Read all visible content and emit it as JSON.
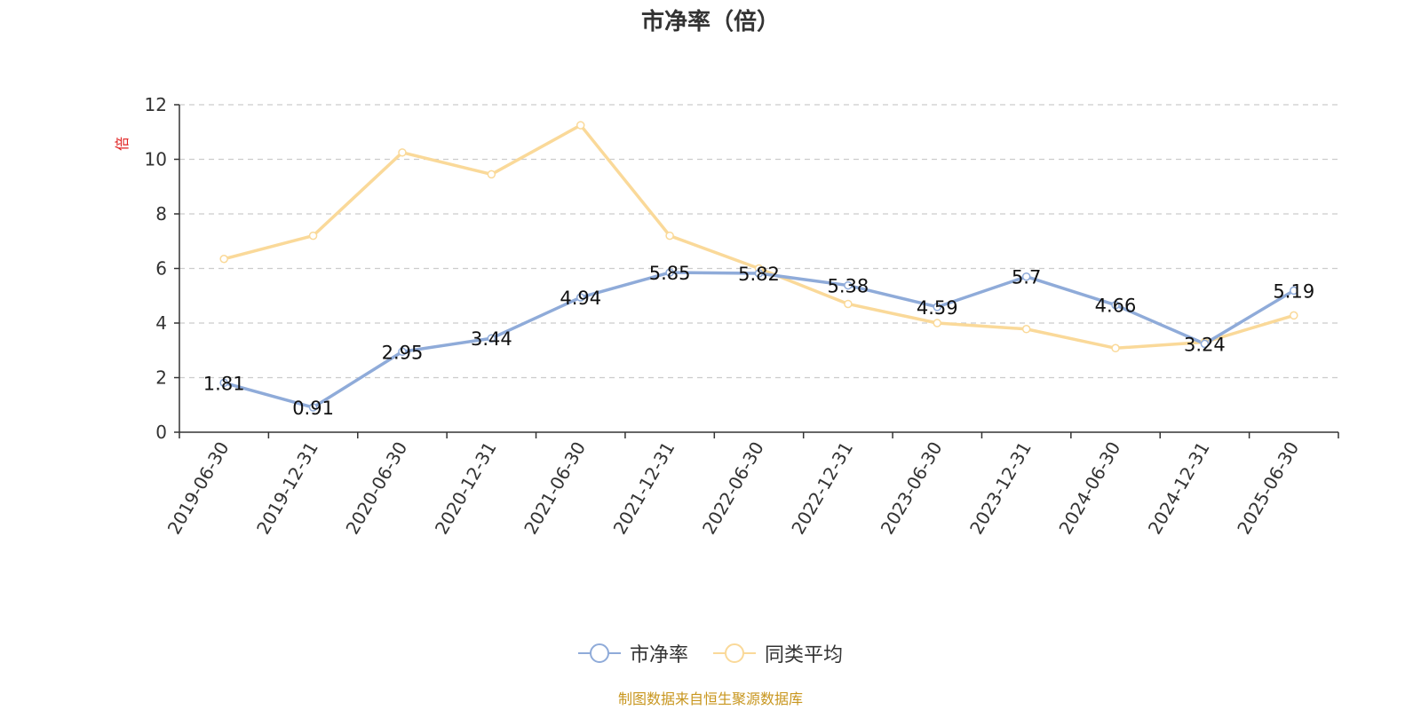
{
  "chart_data": {
    "type": "line",
    "title": "市净率（倍）",
    "ylabel": "倍",
    "ylim": [
      0,
      12
    ],
    "yticks": [
      0,
      2,
      4,
      6,
      8,
      10,
      12
    ],
    "grid": true,
    "legend_position": "bottom-center",
    "categories": [
      "2019-06-30",
      "2019-12-31",
      "2020-06-30",
      "2020-12-31",
      "2021-06-30",
      "2021-12-31",
      "2022-06-30",
      "2022-12-31",
      "2023-06-30",
      "2023-12-31",
      "2024-06-30",
      "2024-12-31",
      "2025-06-30"
    ],
    "series": [
      {
        "name": "市净率",
        "color": "#8fabd9",
        "values": [
          1.81,
          0.91,
          2.95,
          3.44,
          4.94,
          5.85,
          5.82,
          5.38,
          4.59,
          5.7,
          4.66,
          3.24,
          5.19
        ],
        "labels": [
          "1.81",
          "0.91",
          "2.95",
          "3.44",
          "4.94",
          "5.85",
          "5.82",
          "5.38",
          "4.59",
          "5.7",
          "4.66",
          "3.24",
          "5.19"
        ]
      },
      {
        "name": "同类平均",
        "color": "#fad999",
        "values": [
          6.35,
          7.2,
          10.25,
          9.45,
          11.25,
          7.2,
          6.0,
          4.7,
          4.0,
          3.78,
          3.08,
          3.3,
          4.28
        ]
      }
    ]
  },
  "source_note": "制图数据来自恒生聚源数据库"
}
